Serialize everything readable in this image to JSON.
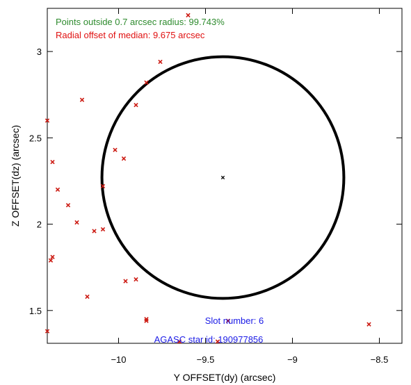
{
  "chart_data": {
    "type": "scatter",
    "title": "",
    "xlabel": "Y OFFSET(dy) (arcsec)",
    "ylabel": "Z OFFSET(dz) (arcsec)",
    "xlim": [
      -10.41,
      -8.37
    ],
    "ylim": [
      1.31,
      3.25
    ],
    "xticks": [
      -10,
      -9.5,
      -9,
      -8.5
    ],
    "xtick_labels": [
      "−10",
      "−9.5",
      "−9",
      "−8.5"
    ],
    "yticks": [
      1.5,
      2,
      2.5,
      3
    ],
    "ytick_labels": [
      "1.5",
      "2",
      "2.5",
      "3"
    ],
    "grid": false,
    "circle": {
      "center": [
        -9.4,
        2.27
      ],
      "radius": 0.7,
      "color": "#000000"
    },
    "median_point": {
      "x": -9.4,
      "y": 2.27,
      "color": "#000000"
    },
    "points_color": "#cc1a12",
    "points": [
      {
        "x": -9.76,
        "y": 2.94
      },
      {
        "x": -9.84,
        "y": 2.82
      },
      {
        "x": -10.21,
        "y": 2.72
      },
      {
        "x": -9.9,
        "y": 2.69
      },
      {
        "x": -10.41,
        "y": 2.6
      },
      {
        "x": -10.02,
        "y": 2.43
      },
      {
        "x": -9.97,
        "y": 2.38
      },
      {
        "x": -10.38,
        "y": 2.36
      },
      {
        "x": -10.09,
        "y": 2.22
      },
      {
        "x": -10.35,
        "y": 2.2
      },
      {
        "x": -10.29,
        "y": 2.11
      },
      {
        "x": -10.24,
        "y": 2.01
      },
      {
        "x": -10.09,
        "y": 1.97
      },
      {
        "x": -10.14,
        "y": 1.96
      },
      {
        "x": -10.38,
        "y": 1.81
      },
      {
        "x": -10.39,
        "y": 1.79
      },
      {
        "x": -9.9,
        "y": 1.68
      },
      {
        "x": -9.96,
        "y": 1.67
      },
      {
        "x": -10.18,
        "y": 1.58
      },
      {
        "x": -9.84,
        "y": 1.45
      },
      {
        "x": -9.84,
        "y": 1.44
      },
      {
        "x": -9.37,
        "y": 1.44
      },
      {
        "x": -10.41,
        "y": 1.38
      },
      {
        "x": -9.65,
        "y": 1.32
      },
      {
        "x": -9.43,
        "y": 1.32
      },
      {
        "x": -9.6,
        "y": 3.21
      },
      {
        "x": -8.56,
        "y": 1.42
      }
    ],
    "annotations": {
      "points_outside": {
        "text": "Points outside 0.7 arcsec radius: 99.743%",
        "color": "#2e8b2e"
      },
      "radial_offset": {
        "text": "Radial offset of median: 9.675 arcsec",
        "color": "#e01010"
      },
      "slot_number": {
        "text": "Slot number: 6",
        "color": "#1a1ae6"
      },
      "agasc_star_id": {
        "text": "AGASC star id: 190977856",
        "color": "#1a1ae6"
      }
    }
  }
}
